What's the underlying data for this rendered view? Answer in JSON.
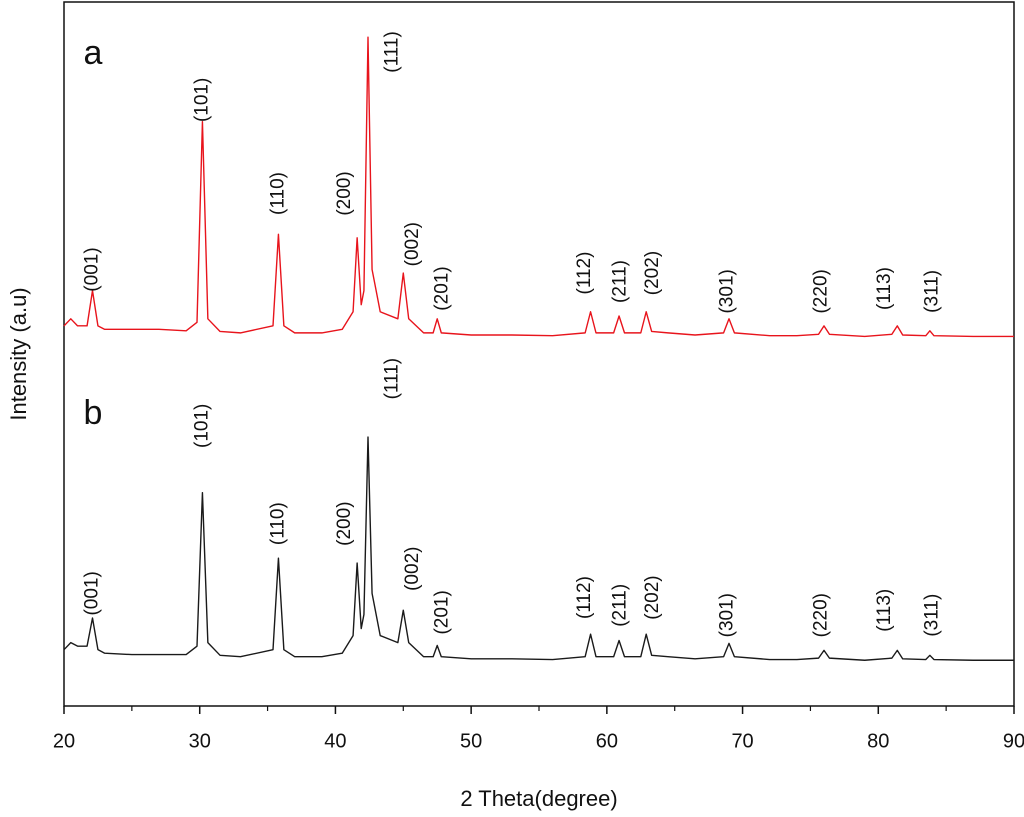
{
  "chart_data": {
    "type": "line",
    "x_label": "2 Theta(degree)",
    "y_label": "Intensity (a.u)",
    "xlim": [
      20,
      90
    ],
    "ylim": [
      0,
      100
    ],
    "xticks": [
      20,
      30,
      40,
      50,
      60,
      70,
      80,
      90
    ],
    "xminorticks": [
      25,
      35,
      45,
      55,
      65,
      75,
      85
    ],
    "x": [
      20,
      20.5,
      21,
      21.7,
      22.1,
      22.5,
      23,
      25,
      27,
      29,
      29.8,
      30.2,
      30.6,
      31.5,
      33,
      35.4,
      35.8,
      36.2,
      37,
      39,
      40.5,
      41.3,
      41.6,
      41.9,
      42.1,
      42.4,
      42.7,
      43.3,
      44.6,
      45.0,
      45.4,
      46.5,
      47.2,
      47.5,
      47.8,
      50,
      53,
      56,
      58.4,
      58.8,
      59.2,
      60.5,
      60.9,
      61.3,
      62.5,
      62.9,
      63.3,
      64.5,
      66.5,
      68.6,
      69.0,
      69.4,
      72,
      74,
      75.6,
      76.0,
      76.4,
      79,
      81.0,
      81.4,
      81.8,
      83.5,
      83.8,
      84.1,
      87,
      90
    ],
    "series": [
      {
        "name": "a",
        "color": "#e8141c",
        "values": [
          54,
          55,
          54,
          54,
          59,
          54,
          53.5,
          53.5,
          53.5,
          53.3,
          54.5,
          83,
          55,
          53.2,
          53,
          54,
          67,
          54,
          53,
          53,
          53.5,
          56,
          66.5,
          57,
          59,
          95,
          62,
          56,
          55,
          61.5,
          55,
          53,
          53,
          55,
          53,
          52.7,
          52.7,
          52.6,
          53,
          56,
          53,
          53,
          55.4,
          53,
          53,
          56,
          53.2,
          53,
          52.7,
          53,
          55,
          53,
          52.6,
          52.6,
          52.8,
          54,
          52.8,
          52.5,
          52.8,
          54,
          52.7,
          52.6,
          53.3,
          52.6,
          52.5,
          52.5
        ],
        "peak_labels": [
          {
            "text": "(001)",
            "x": 22.1,
            "y": 62
          },
          {
            "text": "(101)",
            "x": 30.2,
            "y": 86.1
          },
          {
            "text": "(110)",
            "x": 35.8,
            "y": 72.8
          },
          {
            "text": "(200)",
            "x": 40.7,
            "y": 72.8
          },
          {
            "text": "(111)",
            "x": 44.2,
            "y": 92.9
          },
          {
            "text": "(002)",
            "x": 45.7,
            "y": 65.6
          },
          {
            "text": "(201)",
            "x": 47.9,
            "y": 59.3
          },
          {
            "text": "(112)",
            "x": 58.4,
            "y": 61.5
          },
          {
            "text": "(211)",
            "x": 61.0,
            "y": 60.3
          },
          {
            "text": "(202)",
            "x": 63.4,
            "y": 61.5
          },
          {
            "text": "(301)",
            "x": 68.9,
            "y": 58.9
          },
          {
            "text": "(220)",
            "x": 75.8,
            "y": 58.9
          },
          {
            "text": "(113)",
            "x": 80.5,
            "y": 59.3
          },
          {
            "text": "(311)",
            "x": 84.0,
            "y": 58.9
          }
        ]
      },
      {
        "name": "b",
        "color": "#1a1a1a",
        "values": [
          8,
          9,
          8.5,
          8.5,
          12.5,
          8,
          7.5,
          7.3,
          7.3,
          7.3,
          8.5,
          30.3,
          9,
          7.2,
          7,
          8,
          21,
          8,
          7,
          7,
          7.5,
          10,
          20.3,
          11,
          13,
          38.2,
          16,
          10,
          9,
          13.6,
          9,
          7,
          7,
          8.6,
          7,
          6.7,
          6.7,
          6.6,
          7,
          10.2,
          7,
          7,
          9.3,
          7,
          7,
          10.2,
          7.2,
          7,
          6.7,
          7,
          8.9,
          7,
          6.6,
          6.6,
          6.8,
          7.9,
          6.8,
          6.5,
          6.8,
          7.9,
          6.7,
          6.6,
          7.2,
          6.6,
          6.5,
          6.5
        ],
        "peak_labels": [
          {
            "text": "(001)",
            "x": 22.1,
            "y": 16
          },
          {
            "text": "(101)",
            "x": 30.2,
            "y": 39.8
          },
          {
            "text": "(110)",
            "x": 35.8,
            "y": 25.9
          },
          {
            "text": "(200)",
            "x": 40.7,
            "y": 25.9
          },
          {
            "text": "(111)",
            "x": 44.2,
            "y": 46.5
          },
          {
            "text": "(002)",
            "x": 45.7,
            "y": 19.5
          },
          {
            "text": "(201)",
            "x": 47.9,
            "y": 13.3
          },
          {
            "text": "(112)",
            "x": 58.4,
            "y": 15.4
          },
          {
            "text": "(211)",
            "x": 61.0,
            "y": 14.3
          },
          {
            "text": "(202)",
            "x": 63.4,
            "y": 15.4
          },
          {
            "text": "(301)",
            "x": 68.9,
            "y": 12.9
          },
          {
            "text": "(220)",
            "x": 75.8,
            "y": 12.9
          },
          {
            "text": "(113)",
            "x": 80.5,
            "y": 13.6
          },
          {
            "text": "(311)",
            "x": 84.0,
            "y": 12.9
          }
        ]
      }
    ]
  }
}
